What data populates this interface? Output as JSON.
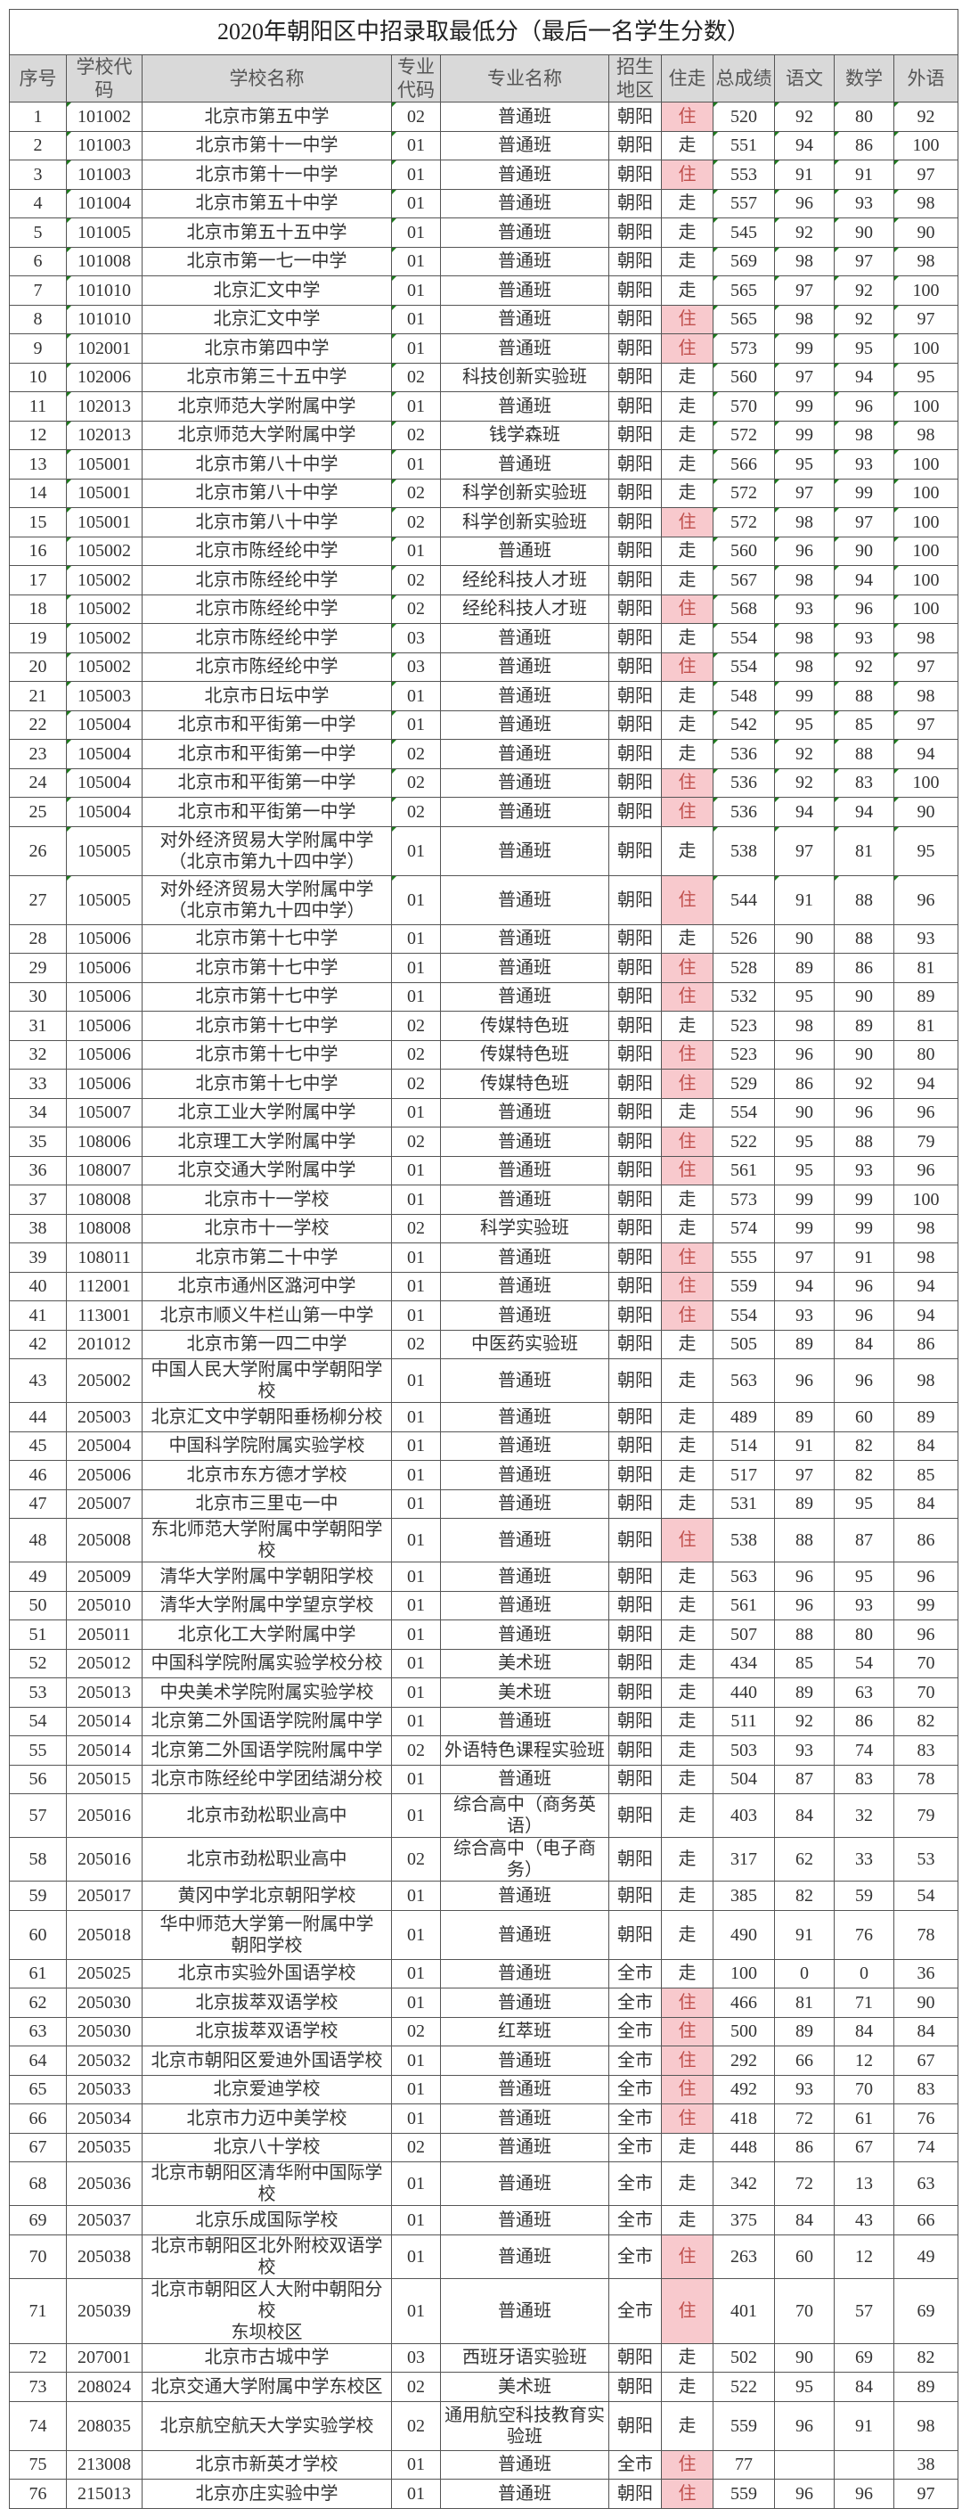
{
  "title": "2020年朝阳区中招录取最低分（最后一名学生分数）",
  "colors": {
    "header_bg": "#d9d9d9",
    "zhu_highlight_bg": "#f8c9cd",
    "zhu_highlight_text": "#c0504d"
  },
  "columns": [
    "序号",
    "学校代码",
    "学校名称",
    "专业\n代码",
    "专业名称",
    "招生\n地区",
    "住走",
    "总成绩",
    "语文",
    "数学",
    "外语"
  ],
  "rows": [
    [
      "1",
      "101002",
      "北京市第五中学",
      "02",
      "普通班",
      "朝阳",
      "住",
      "520",
      "92",
      "80",
      "92"
    ],
    [
      "2",
      "101003",
      "北京市第十一中学",
      "01",
      "普通班",
      "朝阳",
      "走",
      "551",
      "94",
      "86",
      "100"
    ],
    [
      "3",
      "101003",
      "北京市第十一中学",
      "01",
      "普通班",
      "朝阳",
      "住",
      "553",
      "91",
      "91",
      "97"
    ],
    [
      "4",
      "101004",
      "北京市第五十中学",
      "01",
      "普通班",
      "朝阳",
      "走",
      "557",
      "96",
      "93",
      "98"
    ],
    [
      "5",
      "101005",
      "北京市第五十五中学",
      "01",
      "普通班",
      "朝阳",
      "走",
      "545",
      "92",
      "90",
      "90"
    ],
    [
      "6",
      "101008",
      "北京市第一七一中学",
      "01",
      "普通班",
      "朝阳",
      "走",
      "569",
      "98",
      "97",
      "98"
    ],
    [
      "7",
      "101010",
      "北京汇文中学",
      "01",
      "普通班",
      "朝阳",
      "走",
      "565",
      "97",
      "92",
      "100"
    ],
    [
      "8",
      "101010",
      "北京汇文中学",
      "01",
      "普通班",
      "朝阳",
      "住",
      "565",
      "98",
      "92",
      "97"
    ],
    [
      "9",
      "102001",
      "北京市第四中学",
      "01",
      "普通班",
      "朝阳",
      "住",
      "573",
      "99",
      "95",
      "100"
    ],
    [
      "10",
      "102006",
      "北京市第三十五中学",
      "02",
      "科技创新实验班",
      "朝阳",
      "走",
      "560",
      "97",
      "94",
      "95"
    ],
    [
      "11",
      "102013",
      "北京师范大学附属中学",
      "01",
      "普通班",
      "朝阳",
      "走",
      "570",
      "99",
      "96",
      "100"
    ],
    [
      "12",
      "102013",
      "北京师范大学附属中学",
      "02",
      "钱学森班",
      "朝阳",
      "走",
      "572",
      "99",
      "98",
      "98"
    ],
    [
      "13",
      "105001",
      "北京市第八十中学",
      "01",
      "普通班",
      "朝阳",
      "走",
      "566",
      "95",
      "93",
      "100"
    ],
    [
      "14",
      "105001",
      "北京市第八十中学",
      "02",
      "科学创新实验班",
      "朝阳",
      "走",
      "572",
      "97",
      "99",
      "100"
    ],
    [
      "15",
      "105001",
      "北京市第八十中学",
      "02",
      "科学创新实验班",
      "朝阳",
      "住",
      "572",
      "98",
      "97",
      "100"
    ],
    [
      "16",
      "105002",
      "北京市陈经纶中学",
      "01",
      "普通班",
      "朝阳",
      "走",
      "560",
      "96",
      "90",
      "100"
    ],
    [
      "17",
      "105002",
      "北京市陈经纶中学",
      "02",
      "经纶科技人才班",
      "朝阳",
      "走",
      "567",
      "98",
      "94",
      "100"
    ],
    [
      "18",
      "105002",
      "北京市陈经纶中学",
      "02",
      "经纶科技人才班",
      "朝阳",
      "住",
      "568",
      "93",
      "96",
      "100"
    ],
    [
      "19",
      "105002",
      "北京市陈经纶中学",
      "03",
      "普通班",
      "朝阳",
      "走",
      "554",
      "98",
      "93",
      "98"
    ],
    [
      "20",
      "105002",
      "北京市陈经纶中学",
      "03",
      "普通班",
      "朝阳",
      "住",
      "554",
      "98",
      "92",
      "97"
    ],
    [
      "21",
      "105003",
      "北京市日坛中学",
      "01",
      "普通班",
      "朝阳",
      "走",
      "548",
      "99",
      "88",
      "98"
    ],
    [
      "22",
      "105004",
      "北京市和平街第一中学",
      "01",
      "普通班",
      "朝阳",
      "走",
      "542",
      "95",
      "85",
      "97"
    ],
    [
      "23",
      "105004",
      "北京市和平街第一中学",
      "02",
      "普通班",
      "朝阳",
      "走",
      "536",
      "92",
      "88",
      "94"
    ],
    [
      "24",
      "105004",
      "北京市和平街第一中学",
      "02",
      "普通班",
      "朝阳",
      "住",
      "536",
      "92",
      "83",
      "100"
    ],
    [
      "25",
      "105004",
      "北京市和平街第一中学",
      "02",
      "普通班",
      "朝阳",
      "住",
      "536",
      "94",
      "94",
      "90"
    ],
    [
      "26",
      "105005",
      "对外经济贸易大学附属中学\n（北京市第九十四中学）",
      "01",
      "普通班",
      "朝阳",
      "走",
      "538",
      "97",
      "81",
      "95"
    ],
    [
      "27",
      "105005",
      "对外经济贸易大学附属中学\n（北京市第九十四中学）",
      "01",
      "普通班",
      "朝阳",
      "住",
      "544",
      "91",
      "88",
      "96"
    ],
    [
      "28",
      "105006",
      "北京市第十七中学",
      "01",
      "普通班",
      "朝阳",
      "走",
      "526",
      "90",
      "88",
      "93"
    ],
    [
      "29",
      "105006",
      "北京市第十七中学",
      "01",
      "普通班",
      "朝阳",
      "住",
      "528",
      "89",
      "86",
      "81"
    ],
    [
      "30",
      "105006",
      "北京市第十七中学",
      "01",
      "普通班",
      "朝阳",
      "住",
      "532",
      "95",
      "90",
      "89"
    ],
    [
      "31",
      "105006",
      "北京市第十七中学",
      "02",
      "传媒特色班",
      "朝阳",
      "走",
      "523",
      "98",
      "89",
      "81"
    ],
    [
      "32",
      "105006",
      "北京市第十七中学",
      "02",
      "传媒特色班",
      "朝阳",
      "住",
      "523",
      "96",
      "90",
      "80"
    ],
    [
      "33",
      "105006",
      "北京市第十七中学",
      "02",
      "传媒特色班",
      "朝阳",
      "住",
      "529",
      "86",
      "92",
      "94"
    ],
    [
      "34",
      "105007",
      "北京工业大学附属中学",
      "01",
      "普通班",
      "朝阳",
      "走",
      "554",
      "90",
      "96",
      "96"
    ],
    [
      "35",
      "108006",
      "北京理工大学附属中学",
      "02",
      "普通班",
      "朝阳",
      "住",
      "522",
      "95",
      "88",
      "79"
    ],
    [
      "36",
      "108007",
      "北京交通大学附属中学",
      "01",
      "普通班",
      "朝阳",
      "住",
      "561",
      "95",
      "93",
      "96"
    ],
    [
      "37",
      "108008",
      "北京市十一学校",
      "01",
      "普通班",
      "朝阳",
      "走",
      "573",
      "99",
      "99",
      "100"
    ],
    [
      "38",
      "108008",
      "北京市十一学校",
      "02",
      "科学实验班",
      "朝阳",
      "走",
      "574",
      "99",
      "99",
      "98"
    ],
    [
      "39",
      "108011",
      "北京市第二十中学",
      "01",
      "普通班",
      "朝阳",
      "住",
      "555",
      "97",
      "91",
      "98"
    ],
    [
      "40",
      "112001",
      "北京市通州区潞河中学",
      "01",
      "普通班",
      "朝阳",
      "住",
      "559",
      "94",
      "96",
      "94"
    ],
    [
      "41",
      "113001",
      "北京市顺义牛栏山第一中学",
      "01",
      "普通班",
      "朝阳",
      "住",
      "554",
      "93",
      "96",
      "94"
    ],
    [
      "42",
      "201012",
      "北京市第一四二中学",
      "02",
      "中医药实验班",
      "朝阳",
      "走",
      "505",
      "89",
      "84",
      "86"
    ],
    [
      "43",
      "205002",
      "中国人民大学附属中学朝阳学校",
      "01",
      "普通班",
      "朝阳",
      "走",
      "563",
      "96",
      "96",
      "98"
    ],
    [
      "44",
      "205003",
      "北京汇文中学朝阳垂杨柳分校",
      "01",
      "普通班",
      "朝阳",
      "走",
      "489",
      "89",
      "60",
      "89"
    ],
    [
      "45",
      "205004",
      "中国科学院附属实验学校",
      "01",
      "普通班",
      "朝阳",
      "走",
      "514",
      "91",
      "82",
      "84"
    ],
    [
      "46",
      "205006",
      "北京市东方德才学校",
      "01",
      "普通班",
      "朝阳",
      "走",
      "517",
      "97",
      "82",
      "85"
    ],
    [
      "47",
      "205007",
      "北京市三里屯一中",
      "01",
      "普通班",
      "朝阳",
      "走",
      "531",
      "89",
      "95",
      "84"
    ],
    [
      "48",
      "205008",
      "东北师范大学附属中学朝阳学校",
      "01",
      "普通班",
      "朝阳",
      "住",
      "538",
      "88",
      "87",
      "86"
    ],
    [
      "49",
      "205009",
      "清华大学附属中学朝阳学校",
      "01",
      "普通班",
      "朝阳",
      "走",
      "563",
      "96",
      "95",
      "96"
    ],
    [
      "50",
      "205010",
      "清华大学附属中学望京学校",
      "01",
      "普通班",
      "朝阳",
      "走",
      "561",
      "96",
      "93",
      "99"
    ],
    [
      "51",
      "205011",
      "北京化工大学附属中学",
      "01",
      "普通班",
      "朝阳",
      "走",
      "507",
      "88",
      "80",
      "96"
    ],
    [
      "52",
      "205012",
      "中国科学院附属实验学校分校",
      "01",
      "美术班",
      "朝阳",
      "走",
      "434",
      "85",
      "54",
      "70"
    ],
    [
      "53",
      "205013",
      "中央美术学院附属实验学校",
      "01",
      "美术班",
      "朝阳",
      "走",
      "440",
      "89",
      "63",
      "70"
    ],
    [
      "54",
      "205014",
      "北京第二外国语学院附属中学",
      "01",
      "普通班",
      "朝阳",
      "走",
      "511",
      "92",
      "86",
      "82"
    ],
    [
      "55",
      "205014",
      "北京第二外国语学院附属中学",
      "02",
      "外语特色课程实验班",
      "朝阳",
      "走",
      "503",
      "93",
      "74",
      "83"
    ],
    [
      "56",
      "205015",
      "北京市陈经纶中学团结湖分校",
      "01",
      "普通班",
      "朝阳",
      "走",
      "504",
      "87",
      "83",
      "78"
    ],
    [
      "57",
      "205016",
      "北京市劲松职业高中",
      "01",
      "综合高中（商务英语）",
      "朝阳",
      "走",
      "403",
      "84",
      "32",
      "79"
    ],
    [
      "58",
      "205016",
      "北京市劲松职业高中",
      "02",
      "综合高中（电子商务）",
      "朝阳",
      "走",
      "317",
      "62",
      "33",
      "53"
    ],
    [
      "59",
      "205017",
      "黄冈中学北京朝阳学校",
      "01",
      "普通班",
      "朝阳",
      "走",
      "385",
      "82",
      "59",
      "54"
    ],
    [
      "60",
      "205018",
      "华中师范大学第一附属中学\n朝阳学校",
      "01",
      "普通班",
      "朝阳",
      "走",
      "490",
      "91",
      "76",
      "78"
    ],
    [
      "61",
      "205025",
      "北京市实验外国语学校",
      "01",
      "普通班",
      "全市",
      "走",
      "100",
      "0",
      "0",
      "36"
    ],
    [
      "62",
      "205030",
      "北京拔萃双语学校",
      "01",
      "普通班",
      "全市",
      "住",
      "466",
      "81",
      "71",
      "90"
    ],
    [
      "63",
      "205030",
      "北京拔萃双语学校",
      "02",
      "红萃班",
      "全市",
      "住",
      "500",
      "89",
      "84",
      "84"
    ],
    [
      "64",
      "205032",
      "北京市朝阳区爱迪外国语学校",
      "01",
      "普通班",
      "全市",
      "住",
      "292",
      "66",
      "12",
      "67"
    ],
    [
      "65",
      "205033",
      "北京爱迪学校",
      "01",
      "普通班",
      "全市",
      "住",
      "492",
      "93",
      "70",
      "83"
    ],
    [
      "66",
      "205034",
      "北京市力迈中美学校",
      "01",
      "普通班",
      "全市",
      "住",
      "418",
      "72",
      "61",
      "76"
    ],
    [
      "67",
      "205035",
      "北京八十学校",
      "02",
      "普通班",
      "全市",
      "走",
      "448",
      "86",
      "67",
      "74"
    ],
    [
      "68",
      "205036",
      "北京市朝阳区清华附中国际学校",
      "01",
      "普通班",
      "全市",
      "走",
      "342",
      "72",
      "13",
      "63"
    ],
    [
      "69",
      "205037",
      "北京乐成国际学校",
      "01",
      "普通班",
      "全市",
      "走",
      "375",
      "84",
      "43",
      "66"
    ],
    [
      "70",
      "205038",
      "北京市朝阳区北外附校双语学校",
      "01",
      "普通班",
      "全市",
      "住",
      "263",
      "60",
      "12",
      "49"
    ],
    [
      "71",
      "205039",
      "北京市朝阳区人大附中朝阳分校\n东坝校区",
      "01",
      "普通班",
      "全市",
      "住",
      "401",
      "70",
      "57",
      "69"
    ],
    [
      "72",
      "207001",
      "北京市古城中学",
      "03",
      "西班牙语实验班",
      "朝阳",
      "走",
      "502",
      "90",
      "69",
      "82"
    ],
    [
      "73",
      "208024",
      "北京交通大学附属中学东校区",
      "02",
      "美术班",
      "朝阳",
      "走",
      "522",
      "95",
      "84",
      "89"
    ],
    [
      "74",
      "208035",
      "北京航空航天大学实验学校",
      "02",
      "通用航空科技教育实\n验班",
      "朝阳",
      "走",
      "559",
      "96",
      "91",
      "98"
    ],
    [
      "75",
      "213008",
      "北京市新英才学校",
      "01",
      "普通班",
      "全市",
      "住",
      "77",
      "",
      "",
      "38"
    ],
    [
      "76",
      "215013",
      "北京亦庄实验中学",
      "01",
      "普通班",
      "朝阳",
      "住",
      "559",
      "96",
      "96",
      "97"
    ]
  ]
}
